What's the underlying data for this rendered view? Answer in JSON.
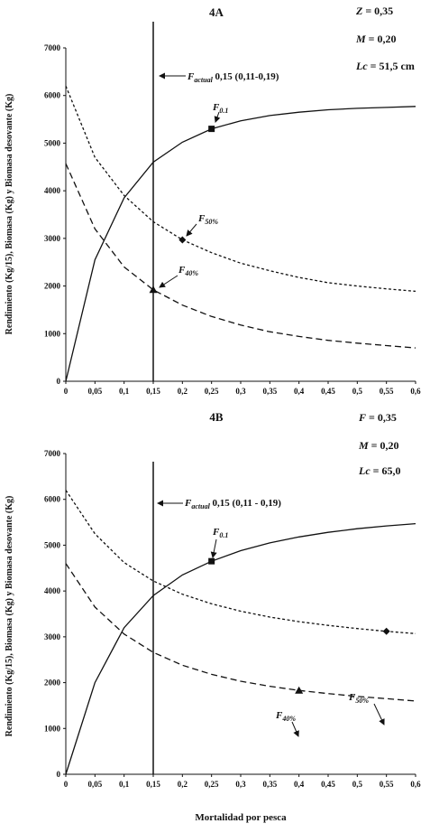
{
  "chart_data": [
    {
      "type": "line",
      "title": "4A",
      "params": [
        {
          "sym": "Z",
          "val": "= 0,35"
        },
        {
          "sym": "M",
          "val": "= 0,20"
        },
        {
          "sym": "Lc",
          "val": "= 51,5 cm"
        }
      ],
      "ylabel": "Rendimiento (Kg/15), Biomasa (Kg) y Biomasa desovante (Kg)",
      "xlim": [
        0,
        0.6
      ],
      "ylim": [
        0,
        7000
      ],
      "x_ticks": [
        "0",
        "0,05",
        "0,1",
        "0,15",
        "0,2",
        "0,25",
        "0,3",
        "0,35",
        "0,4",
        "0,45",
        "0,5",
        "0,55",
        "0,6"
      ],
      "y_ticks": [
        "0",
        "1000",
        "2000",
        "3000",
        "4000",
        "5000",
        "6000",
        "7000"
      ],
      "series": [
        {
          "style": "solid",
          "x": [
            0,
            0.05,
            0.1,
            0.15,
            0.2,
            0.25,
            0.3,
            0.35,
            0.4,
            0.45,
            0.5,
            0.55,
            0.6
          ],
          "y": [
            0,
            2550,
            3850,
            4600,
            5020,
            5300,
            5470,
            5580,
            5650,
            5700,
            5730,
            5750,
            5770
          ]
        },
        {
          "style": "dotted",
          "x": [
            0,
            0.05,
            0.1,
            0.15,
            0.2,
            0.25,
            0.3,
            0.35,
            0.4,
            0.45,
            0.5,
            0.55,
            0.6
          ],
          "y": [
            6200,
            4700,
            3900,
            3350,
            2970,
            2700,
            2480,
            2320,
            2180,
            2070,
            2000,
            1940,
            1890
          ]
        },
        {
          "style": "dashed",
          "x": [
            0,
            0.05,
            0.1,
            0.15,
            0.2,
            0.25,
            0.3,
            0.35,
            0.4,
            0.45,
            0.5,
            0.55,
            0.6
          ],
          "y": [
            4570,
            3200,
            2400,
            1920,
            1600,
            1360,
            1180,
            1040,
            940,
            860,
            800,
            750,
            700
          ]
        }
      ],
      "vline": {
        "x": 0.15,
        "label_sym": "F",
        "label_sub": "actual",
        "label_val": " 0,15 (0,11-0,19)"
      },
      "markers": [
        {
          "shape": "square",
          "x": 0.25,
          "y": 5300,
          "label": "F",
          "sub": "0.1"
        },
        {
          "shape": "diamond",
          "x": 0.2,
          "y": 2970,
          "label": "F",
          "sub": "50%"
        },
        {
          "shape": "triangle",
          "x": 0.15,
          "y": 1920,
          "label": "F",
          "sub": "40%"
        }
      ]
    },
    {
      "type": "line",
      "title": "4B",
      "params": [
        {
          "sym": "F",
          "val": "= 0,35"
        },
        {
          "sym": "M",
          "val": "= 0,20"
        },
        {
          "sym": "Lc",
          "val": "= 65,0"
        }
      ],
      "ylabel": "Rendimiento (Kg/15), Biomasa (Kg) y Biomasa desovante (Kg)",
      "xlabel": "Mortalidad por pesca",
      "xlim": [
        0,
        0.6
      ],
      "ylim": [
        0,
        7000
      ],
      "x_ticks": [
        "0",
        "0,05",
        "0,1",
        "0,15",
        "0,2",
        "0,25",
        "0,3",
        "0,35",
        "0,4",
        "0,45",
        "0,5",
        "0,55",
        "0,6"
      ],
      "y_ticks": [
        "0",
        "1000",
        "2000",
        "3000",
        "4000",
        "5000",
        "6000",
        "7000"
      ],
      "series": [
        {
          "style": "solid",
          "x": [
            0,
            0.05,
            0.1,
            0.15,
            0.2,
            0.25,
            0.3,
            0.35,
            0.4,
            0.45,
            0.5,
            0.55,
            0.6
          ],
          "y": [
            0,
            2000,
            3200,
            3900,
            4350,
            4650,
            4880,
            5050,
            5180,
            5280,
            5360,
            5420,
            5470
          ]
        },
        {
          "style": "dotted",
          "x": [
            0,
            0.05,
            0.1,
            0.15,
            0.2,
            0.25,
            0.3,
            0.35,
            0.4,
            0.45,
            0.5,
            0.55,
            0.6
          ],
          "y": [
            6200,
            5250,
            4620,
            4220,
            3930,
            3720,
            3560,
            3430,
            3330,
            3250,
            3180,
            3120,
            3070
          ]
        },
        {
          "style": "dashed",
          "x": [
            0,
            0.05,
            0.1,
            0.15,
            0.2,
            0.25,
            0.3,
            0.35,
            0.4,
            0.45,
            0.5,
            0.55,
            0.6
          ],
          "y": [
            4600,
            3650,
            3060,
            2660,
            2380,
            2180,
            2030,
            1920,
            1830,
            1760,
            1700,
            1650,
            1600
          ]
        }
      ],
      "vline": {
        "x": 0.15,
        "label_sym": "F",
        "label_sub": "actual",
        "label_val": " 0,15 (0,11 - 0,19)"
      },
      "markers": [
        {
          "shape": "square",
          "x": 0.25,
          "y": 4650,
          "label": "F",
          "sub": "0.1"
        },
        {
          "shape": "diamond",
          "x": 0.55,
          "y": 3120,
          "label": "F",
          "sub": "50%"
        },
        {
          "shape": "triangle",
          "x": 0.4,
          "y": 1830,
          "label": "F",
          "sub": "40%"
        }
      ]
    }
  ]
}
